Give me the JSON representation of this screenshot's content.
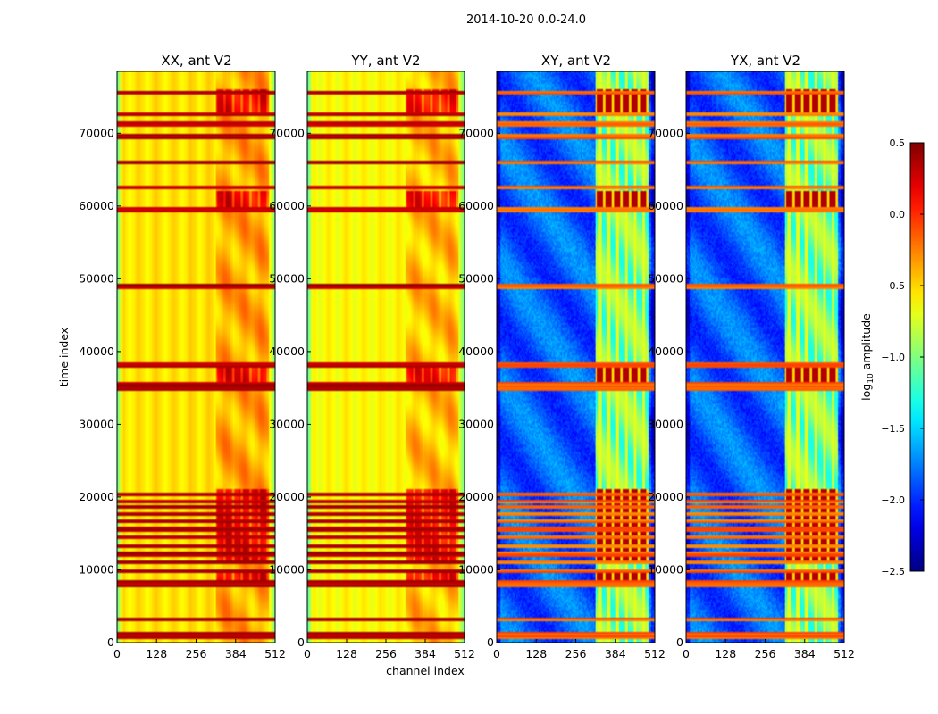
{
  "chart_data": {
    "type": "heatmap",
    "suptitle": "2014-10-20 0.0-24.0",
    "xlabel": "channel index",
    "ylabel": "time index",
    "xlim": [
      0,
      512
    ],
    "ylim": [
      0,
      78500
    ],
    "xticks": [
      0,
      128,
      256,
      384,
      512
    ],
    "yticks": [
      0,
      10000,
      20000,
      30000,
      40000,
      50000,
      60000,
      70000
    ],
    "panels": [
      {
        "title": "XX, ant V2",
        "kind": "auto",
        "base": -0.55
      },
      {
        "title": "YY, ant V2",
        "kind": "auto",
        "base": -0.62
      },
      {
        "title": "XY, ant V2",
        "kind": "cross",
        "base": -1.85
      },
      {
        "title": "YX, ant V2",
        "kind": "cross",
        "base": -1.85
      }
    ],
    "colorbar": {
      "label": "log10 amplitude",
      "vmin": -2.5,
      "vmax": 0.5,
      "ticks": [
        0.5,
        0.0,
        -0.5,
        -1.0,
        -1.5,
        -2.0,
        -2.5
      ],
      "tick_labels": [
        "0.5",
        "0.0",
        "−0.5",
        "−1.0",
        "−1.5",
        "−2.0",
        "−2.5"
      ],
      "colormap": "jet"
    },
    "flagged_time_bands": [
      [
        600,
        1400
      ],
      [
        2900,
        3500
      ],
      [
        7500,
        8500
      ],
      [
        9500,
        10000
      ],
      [
        10800,
        11200
      ],
      [
        11800,
        12400
      ],
      [
        13000,
        13600
      ],
      [
        14200,
        14800
      ],
      [
        15300,
        15900
      ],
      [
        16400,
        16900
      ],
      [
        17400,
        17900
      ],
      [
        18300,
        18800
      ],
      [
        19200,
        19700
      ],
      [
        20100,
        20700
      ],
      [
        34500,
        35800
      ],
      [
        37800,
        38400
      ],
      [
        48600,
        49400
      ],
      [
        59000,
        59900
      ],
      [
        62300,
        62700
      ],
      [
        65800,
        66200
      ],
      [
        69200,
        69800
      ],
      [
        71000,
        71600
      ],
      [
        72300,
        72800
      ],
      [
        75300,
        75800
      ]
    ],
    "rfi_channel_range": [
      320,
      490
    ]
  }
}
